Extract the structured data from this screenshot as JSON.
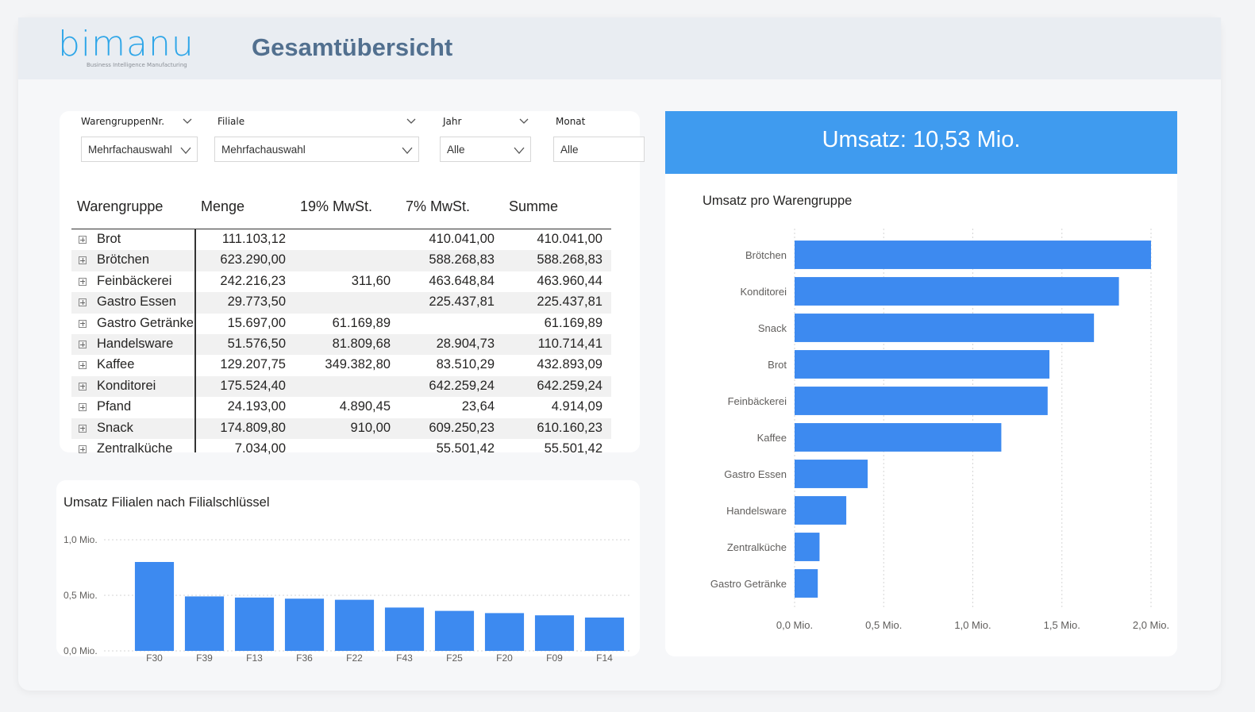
{
  "header": {
    "logo_text": "bimanu",
    "logo_tagline": "Business Intelligence Manufacturing",
    "title": "Gesamtübersicht"
  },
  "filters": [
    {
      "label": "WarengruppenNr.",
      "value": "Mehrfachauswahl"
    },
    {
      "label": "Filiale",
      "value": "Mehrfachauswahl"
    },
    {
      "label": "Jahr",
      "value": "Alle"
    },
    {
      "label": "Monat",
      "value": "Alle"
    }
  ],
  "table": {
    "headers": [
      "Warengruppe",
      "Menge",
      "19% MwSt.",
      "7% MwSt.",
      "Summe"
    ],
    "rows": [
      [
        "Brot",
        "111.103,12",
        "",
        "410.041,00",
        "410.041,00"
      ],
      [
        "Brötchen",
        "623.290,00",
        "",
        "588.268,83",
        "588.268,83"
      ],
      [
        "Feinbäckerei",
        "242.216,23",
        "311,60",
        "463.648,84",
        "463.960,44"
      ],
      [
        "Gastro Essen",
        "29.773,50",
        "",
        "225.437,81",
        "225.437,81"
      ],
      [
        "Gastro Getränke",
        "15.697,00",
        "61.169,89",
        "",
        "61.169,89"
      ],
      [
        "Handelsware",
        "51.576,50",
        "81.809,68",
        "28.904,73",
        "110.714,41"
      ],
      [
        "Kaffee",
        "129.207,75",
        "349.382,80",
        "83.510,29",
        "432.893,09"
      ],
      [
        "Konditorei",
        "175.524,40",
        "",
        "642.259,24",
        "642.259,24"
      ],
      [
        "Pfand",
        "24.193,00",
        "4.890,45",
        "23,64",
        "4.914,09"
      ],
      [
        "Snack",
        "174.809,80",
        "910,00",
        "609.250,23",
        "610.160,23"
      ],
      [
        "Zentralküche",
        "7.034,00",
        "",
        "55.501,42",
        "55.501,42"
      ]
    ]
  },
  "kpi": {
    "text": "Umsatz: 10,53 Mio.",
    "color": "#3f9bef"
  },
  "chart_data": [
    {
      "type": "bar",
      "orientation": "vertical",
      "title": "Umsatz Filialen nach Filialschlüssel",
      "categories": [
        "F30",
        "F39",
        "F13",
        "F36",
        "F22",
        "F43",
        "F25",
        "F20",
        "F09",
        "F14"
      ],
      "values": [
        0.8,
        0.49,
        0.48,
        0.47,
        0.46,
        0.39,
        0.36,
        0.34,
        0.32,
        0.3
      ],
      "ylim": [
        0,
        1.0
      ],
      "yticks": [
        0,
        0.5,
        1.0
      ],
      "ytick_labels": [
        "0,0 Mio.",
        "0,5 Mio.",
        "1,0 Mio."
      ],
      "color": "#3d8af0",
      "grid": true
    },
    {
      "type": "bar",
      "orientation": "horizontal",
      "title": "Umsatz pro Warengruppe",
      "categories": [
        "Brötchen",
        "Konditorei",
        "Snack",
        "Brot",
        "Feinbäckerei",
        "Kaffee",
        "Gastro Essen",
        "Handelsware",
        "Zentralküche",
        "Gastro Getränke"
      ],
      "values": [
        2.0,
        1.82,
        1.68,
        1.43,
        1.42,
        1.16,
        0.41,
        0.29,
        0.14,
        0.13
      ],
      "xlim": [
        0,
        2.0
      ],
      "xticks": [
        0,
        0.5,
        1.0,
        1.5,
        2.0
      ],
      "xtick_labels": [
        "0,0 Mio.",
        "0,5 Mio.",
        "1,0 Mio.",
        "1,5 Mio.",
        "2,0 Mio."
      ],
      "color": "#3d8af0",
      "grid": true
    }
  ]
}
